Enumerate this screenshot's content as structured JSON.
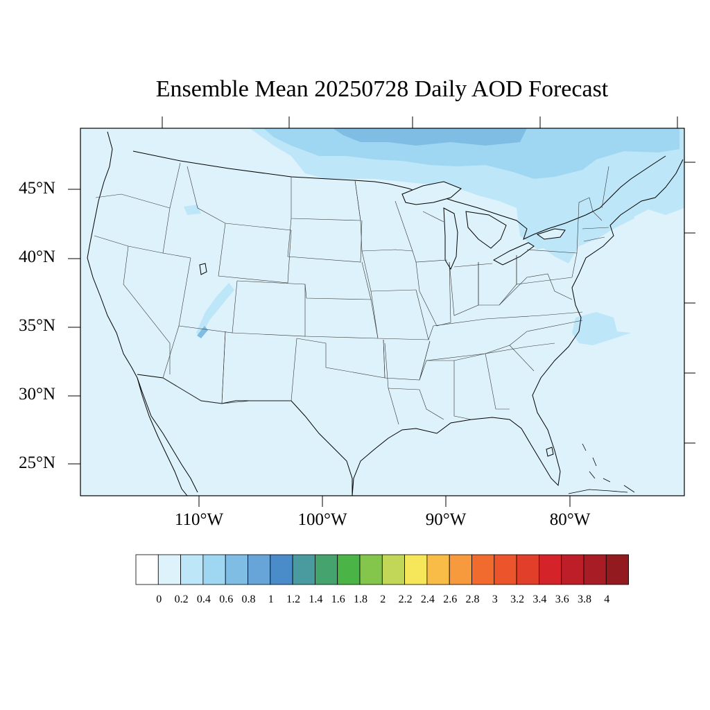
{
  "title": "Ensemble Mean 20250728 Daily AOD Forecast",
  "map": {
    "lat_labels": [
      "45°N",
      "40°N",
      "35°N",
      "30°N",
      "25°N"
    ],
    "lon_labels": [
      "110°W",
      "100°W",
      "90°W",
      "80°W"
    ],
    "background_aod_color": "#def2fb"
  },
  "colorbar": {
    "labels": [
      "0",
      "0.2",
      "0.4",
      "0.6",
      "0.8",
      "1",
      "1.2",
      "1.4",
      "1.6",
      "1.8",
      "2",
      "2.2",
      "2.4",
      "2.6",
      "2.8",
      "3",
      "3.2",
      "3.4",
      "3.6",
      "3.8",
      "4"
    ],
    "colors": [
      "#ffffff",
      "#def2fb",
      "#bde6f8",
      "#9fd7f3",
      "#80bde4",
      "#67a5d8",
      "#4a8bc9",
      "#499b9f",
      "#45a46d",
      "#4ab446",
      "#84c54b",
      "#c2d657",
      "#f6e659",
      "#f9bc47",
      "#f7993d",
      "#f26b2e",
      "#ec552b",
      "#e13f29",
      "#d42329",
      "#be1e27",
      "#a81d25",
      "#931a1f"
    ]
  }
}
